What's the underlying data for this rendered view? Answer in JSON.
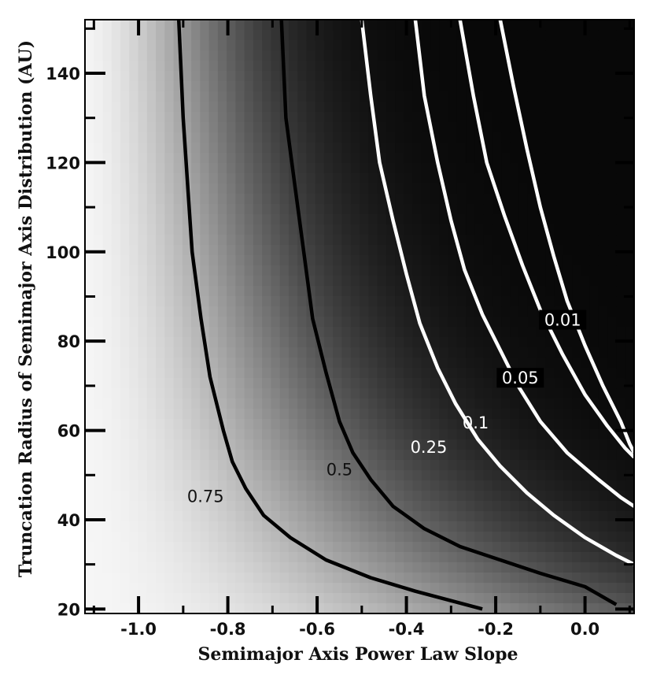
{
  "chart_data": {
    "type": "heatmap",
    "title": "",
    "xlabel": "Semimajor Axis Power Law Slope",
    "ylabel": "Truncation Radius of Semimajor Axis Distribution (AU)",
    "xlim": [
      -1.12,
      0.11
    ],
    "ylim": [
      19,
      152
    ],
    "x_ticks": [
      {
        "value": -1.0,
        "label": "-1.0"
      },
      {
        "value": -0.8,
        "label": "-0.8"
      },
      {
        "value": -0.6,
        "label": "-0.6"
      },
      {
        "value": -0.4,
        "label": "-0.4"
      },
      {
        "value": -0.2,
        "label": "-0.2"
      },
      {
        "value": 0.0,
        "label": "0.0"
      }
    ],
    "y_ticks": [
      {
        "value": 20,
        "label": "20"
      },
      {
        "value": 40,
        "label": "40"
      },
      {
        "value": 60,
        "label": "60"
      },
      {
        "value": 80,
        "label": "80"
      },
      {
        "value": 100,
        "label": "100"
      },
      {
        "value": 120,
        "label": "120"
      },
      {
        "value": 140,
        "label": "140"
      }
    ],
    "colormap": "grayscale: light (high) to black (low)",
    "contours": [
      {
        "level": "0.75",
        "color": "#000000",
        "points": [
          [
            -0.91,
            152
          ],
          [
            -0.9,
            130
          ],
          [
            -0.89,
            115
          ],
          [
            -0.88,
            100
          ],
          [
            -0.86,
            85
          ],
          [
            -0.84,
            72
          ],
          [
            -0.81,
            60
          ],
          [
            -0.79,
            53
          ],
          [
            -0.76,
            47
          ],
          [
            -0.72,
            41
          ],
          [
            -0.66,
            36
          ],
          [
            -0.58,
            31
          ],
          [
            -0.48,
            27
          ],
          [
            -0.38,
            24
          ],
          [
            -0.23,
            20
          ]
        ],
        "label_pos": [
          -0.85,
          44.5
        ],
        "label_color": "#111111",
        "label_bg": ""
      },
      {
        "level": "0.5",
        "color": "#000000",
        "points": [
          [
            -0.68,
            152
          ],
          [
            -0.67,
            130
          ],
          [
            -0.65,
            115
          ],
          [
            -0.63,
            100
          ],
          [
            -0.61,
            85
          ],
          [
            -0.58,
            73
          ],
          [
            -0.55,
            62
          ],
          [
            -0.52,
            55
          ],
          [
            -0.48,
            49
          ],
          [
            -0.43,
            43
          ],
          [
            -0.36,
            38
          ],
          [
            -0.28,
            34
          ],
          [
            -0.19,
            31
          ],
          [
            -0.1,
            28
          ],
          [
            0.0,
            25
          ],
          [
            0.07,
            21
          ]
        ],
        "label_pos": [
          -0.55,
          50.5
        ],
        "label_color": "#111111",
        "label_bg": ""
      },
      {
        "level": "0.25",
        "color": "#ffffff",
        "points": [
          [
            -0.5,
            152
          ],
          [
            -0.48,
            135
          ],
          [
            -0.46,
            120
          ],
          [
            -0.43,
            107
          ],
          [
            -0.4,
            95
          ],
          [
            -0.37,
            84
          ],
          [
            -0.33,
            74
          ],
          [
            -0.29,
            66
          ],
          [
            -0.24,
            58
          ],
          [
            -0.19,
            52
          ],
          [
            -0.13,
            46
          ],
          [
            -0.07,
            41
          ],
          [
            0.0,
            36
          ],
          [
            0.07,
            32
          ],
          [
            0.11,
            30
          ]
        ],
        "label_pos": [
          -0.35,
          55.5
        ],
        "label_color": "#ffffff",
        "label_bg": ""
      },
      {
        "level": "0.1",
        "color": "#ffffff",
        "points": [
          [
            -0.38,
            152
          ],
          [
            -0.36,
            135
          ],
          [
            -0.33,
            120
          ],
          [
            -0.3,
            107
          ],
          [
            -0.27,
            96
          ],
          [
            -0.23,
            86
          ],
          [
            -0.19,
            78
          ],
          [
            -0.15,
            70
          ],
          [
            -0.1,
            62
          ],
          [
            -0.04,
            55
          ],
          [
            0.03,
            49
          ],
          [
            0.08,
            45
          ],
          [
            0.11,
            43
          ]
        ],
        "label_pos": [
          -0.245,
          61
        ],
        "label_color": "#ffffff",
        "label_bg": ""
      },
      {
        "level": "0.05",
        "color": "#ffffff",
        "points": [
          [
            -0.28,
            152
          ],
          [
            -0.25,
            135
          ],
          [
            -0.22,
            120
          ],
          [
            -0.18,
            108
          ],
          [
            -0.14,
            97
          ],
          [
            -0.1,
            87
          ],
          [
            -0.05,
            77
          ],
          [
            0.0,
            68
          ],
          [
            0.05,
            61
          ],
          [
            0.09,
            56
          ],
          [
            0.11,
            54
          ]
        ],
        "label_pos": [
          -0.145,
          71
        ],
        "label_color": "#ffffff",
        "label_bg": "#000000"
      },
      {
        "level": "0.01",
        "color": "#ffffff",
        "points": [
          [
            -0.19,
            152
          ],
          [
            -0.16,
            137
          ],
          [
            -0.13,
            123
          ],
          [
            -0.1,
            110
          ],
          [
            -0.07,
            99
          ],
          [
            -0.04,
            89
          ],
          [
            0.0,
            79
          ],
          [
            0.04,
            70
          ],
          [
            0.08,
            62
          ],
          [
            0.1,
            57
          ],
          [
            0.11,
            55
          ]
        ],
        "label_pos": [
          -0.05,
          84
        ],
        "label_color": "#ffffff",
        "label_bg": "#000000"
      }
    ]
  }
}
